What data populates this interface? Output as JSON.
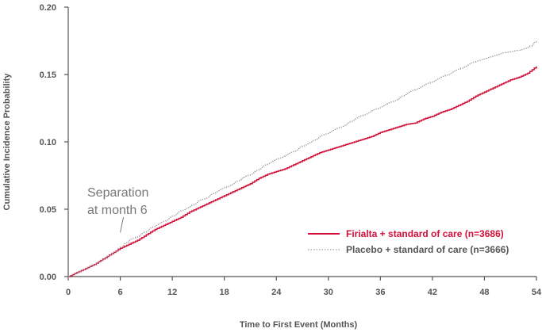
{
  "colors": {
    "firialta": "#d0103a",
    "placebo": "#9a9a9a",
    "axis": "#555555",
    "annotation": "#777777",
    "legend_placebo_text": "#555555"
  },
  "chart_data": {
    "type": "line",
    "title": "",
    "xlabel": "Time to First Event (Months)",
    "ylabel": "Cumulative Incidence Probability",
    "xlim": [
      0,
      54
    ],
    "ylim": [
      0,
      0.2
    ],
    "x_ticks": [
      0,
      6,
      12,
      18,
      24,
      30,
      36,
      42,
      48,
      54
    ],
    "x_tick_labels": [
      "0",
      "6",
      "12",
      "18",
      "24",
      "30",
      "36",
      "42",
      "48",
      "54"
    ],
    "y_ticks": [
      0,
      0.05,
      0.1,
      0.15,
      0.2
    ],
    "y_tick_labels": [
      "0.00",
      "0.05",
      "0.10",
      "0.15",
      "0.20"
    ],
    "grid": false,
    "legend_position": "bottom-right",
    "series": [
      {
        "name": "Firialta + standard of care (n=3686)",
        "style": "solid",
        "color": "#d0103a",
        "x": [
          0,
          1,
          2,
          3,
          4,
          5,
          6,
          7,
          8,
          9,
          10,
          11,
          12,
          13,
          14,
          15,
          16,
          17,
          18,
          19,
          20,
          21,
          22,
          23,
          24,
          25,
          26,
          27,
          28,
          29,
          30,
          31,
          32,
          33,
          34,
          35,
          36,
          37,
          38,
          39,
          40,
          41,
          42,
          43,
          44,
          45,
          46,
          47,
          48,
          49,
          50,
          51,
          52,
          53,
          54
        ],
        "values": [
          0,
          0.003,
          0.006,
          0.009,
          0.013,
          0.017,
          0.021,
          0.024,
          0.027,
          0.031,
          0.035,
          0.038,
          0.041,
          0.044,
          0.048,
          0.051,
          0.054,
          0.057,
          0.06,
          0.063,
          0.066,
          0.069,
          0.073,
          0.076,
          0.078,
          0.08,
          0.083,
          0.086,
          0.089,
          0.092,
          0.094,
          0.096,
          0.098,
          0.1,
          0.102,
          0.104,
          0.107,
          0.109,
          0.111,
          0.113,
          0.114,
          0.117,
          0.119,
          0.122,
          0.124,
          0.127,
          0.13,
          0.134,
          0.137,
          0.14,
          0.143,
          0.146,
          0.148,
          0.151,
          0.156
        ]
      },
      {
        "name": "Placebo + standard of care (n=3666)",
        "style": "dotted",
        "color": "#9a9a9a",
        "x": [
          0,
          1,
          2,
          3,
          4,
          5,
          6,
          7,
          8,
          9,
          10,
          11,
          12,
          13,
          14,
          15,
          16,
          17,
          18,
          19,
          20,
          21,
          22,
          23,
          24,
          25,
          26,
          27,
          28,
          29,
          30,
          31,
          32,
          33,
          34,
          35,
          36,
          37,
          38,
          39,
          40,
          41,
          42,
          43,
          44,
          45,
          46,
          47,
          48,
          49,
          50,
          51,
          52,
          53,
          54
        ],
        "values": [
          0,
          0.003,
          0.006,
          0.009,
          0.013,
          0.017,
          0.022,
          0.027,
          0.03,
          0.034,
          0.038,
          0.041,
          0.045,
          0.049,
          0.052,
          0.056,
          0.059,
          0.063,
          0.066,
          0.069,
          0.073,
          0.076,
          0.08,
          0.084,
          0.087,
          0.09,
          0.093,
          0.097,
          0.1,
          0.104,
          0.107,
          0.11,
          0.113,
          0.117,
          0.12,
          0.123,
          0.126,
          0.129,
          0.132,
          0.136,
          0.139,
          0.142,
          0.145,
          0.148,
          0.151,
          0.154,
          0.157,
          0.16,
          0.162,
          0.164,
          0.166,
          0.167,
          0.168,
          0.17,
          0.175
        ]
      }
    ],
    "annotations": [
      {
        "text_lines": [
          "Separation",
          "at month 6"
        ],
        "x": 6,
        "y": 0.031
      }
    ]
  }
}
